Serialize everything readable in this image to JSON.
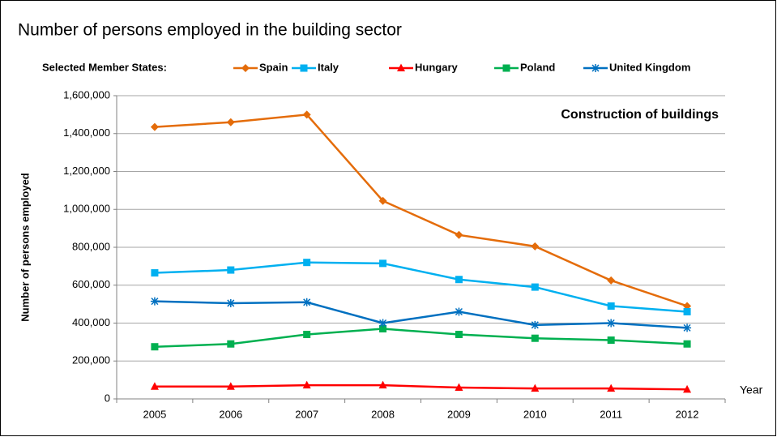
{
  "chart_data": {
    "type": "line",
    "title": "Number of persons employed  in the building sector",
    "legend_title": "Selected Member States:",
    "annotation": "Construction of buildings",
    "x_label": "Year",
    "y_label": "Number of persons employed",
    "categories": [
      "2005",
      "2006",
      "2007",
      "2008",
      "2009",
      "2010",
      "2011",
      "2012"
    ],
    "series": [
      {
        "name": "Spain",
        "color": "#e46c0a",
        "marker": "diamond",
        "values": [
          1435000,
          1460000,
          1500000,
          1045000,
          865000,
          805000,
          625000,
          490000
        ]
      },
      {
        "name": "Italy",
        "color": "#00b0f0",
        "marker": "square",
        "values": [
          665000,
          680000,
          720000,
          715000,
          630000,
          590000,
          490000,
          460000
        ]
      },
      {
        "name": "Hungary",
        "color": "#ff0000",
        "marker": "triangle",
        "values": [
          65000,
          65000,
          72000,
          72000,
          60000,
          55000,
          55000,
          50000
        ]
      },
      {
        "name": "Poland",
        "color": "#00b050",
        "marker": "square",
        "values": [
          275000,
          290000,
          340000,
          370000,
          340000,
          320000,
          310000,
          290000
        ]
      },
      {
        "name": "United Kingdom",
        "color": "#0070c0",
        "marker": "asterisk",
        "values": [
          515000,
          505000,
          510000,
          400000,
          460000,
          390000,
          400000,
          375000
        ]
      }
    ],
    "ylim": [
      0,
      1600000
    ],
    "yticks": [
      0,
      {
        "value": 200000,
        "label": "200,000"
      },
      {
        "value": 400000,
        "label": "400,000"
      },
      {
        "value": 600000,
        "label": "600,000"
      },
      {
        "value": 800000,
        "label": "800,000"
      },
      {
        "value": 1000000,
        "label": "1,000,000"
      },
      {
        "value": 1200000,
        "label": "1,200,000"
      },
      {
        "value": 1400000,
        "label": "1,400,000"
      },
      {
        "value": 1600000,
        "label": "1,600,000"
      }
    ],
    "grid": true,
    "legend_position": "top"
  }
}
